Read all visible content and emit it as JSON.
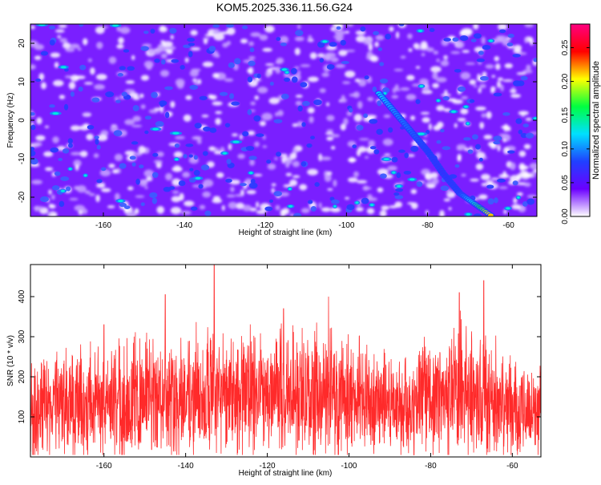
{
  "title": "KOM5.2025.336.11.56.G24",
  "chart_data": [
    {
      "type": "heatmap",
      "name": "spectrogram",
      "xlabel": "Height of straight line (km)",
      "ylabel": "Frequency (Hz)",
      "xlim": [
        -178,
        -53
      ],
      "ylim": [
        -25,
        25
      ],
      "x_ticks": [
        -160,
        -140,
        -120,
        -100,
        -80,
        -60
      ],
      "y_ticks": [
        -20,
        -10,
        0,
        10,
        20
      ],
      "colorbar": {
        "label": "Normalized spectral amplitude",
        "range": [
          0,
          0.285
        ],
        "ticks": [
          0.0,
          0.05,
          0.1,
          0.15,
          0.2,
          0.25
        ],
        "tick_labels": [
          "0.00",
          "0.05",
          "0.10",
          "0.15",
          "0.20",
          "0.25"
        ],
        "colormap": [
          "#ffffff",
          "#6b00ff",
          "#2040ff",
          "#00e0ff",
          "#00ff40",
          "#ffff00",
          "#ff0000",
          "#ff0080"
        ]
      },
      "features": [
        {
          "description": "diagonal streak",
          "points": [
            [
              -92,
              7
            ],
            [
              -88,
              2
            ],
            [
              -84,
              -3
            ],
            [
              -80,
              -8
            ],
            [
              -76,
              -14
            ],
            [
              -72,
              -19
            ],
            [
              -68,
              -22
            ],
            [
              -64,
              -25
            ]
          ],
          "amplitude": [
            0.12,
            0.1,
            0.09,
            0.08,
            0.07,
            0.08,
            0.14,
            0.22
          ]
        }
      ],
      "grid": false
    },
    {
      "type": "line",
      "name": "snr",
      "xlabel": "Height of straight line (km)",
      "ylabel": "SNR (10 * v/v)",
      "xlim": [
        -178,
        -53
      ],
      "ylim": [
        0,
        480
      ],
      "x_ticks": [
        -160,
        -140,
        -120,
        -100,
        -80,
        -60
      ],
      "y_ticks": [
        100,
        200,
        300,
        400
      ],
      "series_color": "#ff2a2a",
      "series": [
        {
          "name": "SNR",
          "x": [
            -178,
            -170,
            -160,
            -150,
            -145,
            -140,
            -133,
            -128,
            -120,
            -115,
            -110,
            -105,
            -100,
            -95,
            -90,
            -85,
            -80,
            -75,
            -73,
            -70,
            -67,
            -65,
            -60,
            -55,
            -53
          ],
          "mean": [
            120,
            125,
            130,
            140,
            150,
            145,
            155,
            140,
            150,
            145,
            145,
            150,
            140,
            135,
            140,
            130,
            135,
            160,
            165,
            155,
            150,
            140,
            125,
            115,
            110
          ],
          "peaks": [
            [
              -133,
              480
            ],
            [
              -67,
              440
            ],
            [
              -73,
              410
            ],
            [
              -105,
              400
            ],
            [
              -145,
              405
            ],
            [
              -116,
              370
            ],
            [
              -160,
              330
            ]
          ]
        }
      ],
      "grid": false
    }
  ]
}
